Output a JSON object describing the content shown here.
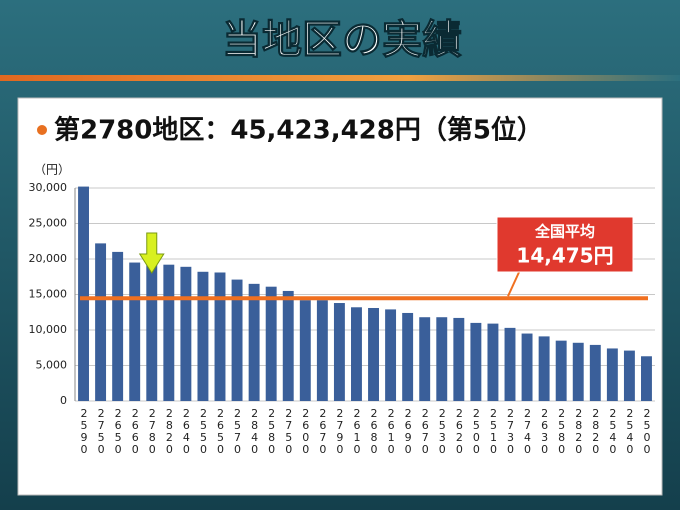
{
  "title": "当地区の実績",
  "chart_data": {
    "type": "bar",
    "title": "第2780地区：45,423,428円（第5位）",
    "y_label": "（円）",
    "categories": [
      "2590",
      "2750",
      "2650",
      "2660",
      "2780",
      "2820",
      "2640",
      "2550",
      "2650",
      "2570",
      "2840",
      "2580",
      "2750",
      "2600",
      "2670",
      "2790",
      "2610",
      "2680",
      "2610",
      "2690",
      "2670",
      "2530",
      "2620",
      "2500",
      "2510",
      "2730",
      "2740",
      "2630",
      "2580",
      "2820",
      "2820",
      "2540",
      "2540",
      "2500"
    ],
    "values": [
      30200,
      22200,
      21000,
      19500,
      19300,
      19200,
      18900,
      18200,
      18100,
      17100,
      16500,
      16100,
      15500,
      14200,
      14200,
      13800,
      13200,
      13100,
      12900,
      12400,
      11800,
      11800,
      11700,
      11000,
      10900,
      10300,
      9500,
      9100,
      8500,
      8200,
      7900,
      7400,
      7100,
      6300
    ],
    "color": "#3a5f9a",
    "ylim": [
      0,
      30000
    ],
    "yticks": [
      0,
      {
        "value": 5000,
        "label": "5,000"
      },
      {
        "value": 10000,
        "label": "10,000"
      },
      {
        "value": 15000,
        "label": "15,000"
      },
      {
        "value": 20000,
        "label": "20,000"
      },
      {
        "value": 25000,
        "label": "25,000"
      },
      {
        "value": 30000,
        "label": "30,000"
      }
    ],
    "grid": true,
    "highlight_index": 4,
    "reference_line": {
      "value": 14475,
      "label": "全国平均",
      "value_label": "14,475円",
      "color": "#f07020"
    }
  }
}
